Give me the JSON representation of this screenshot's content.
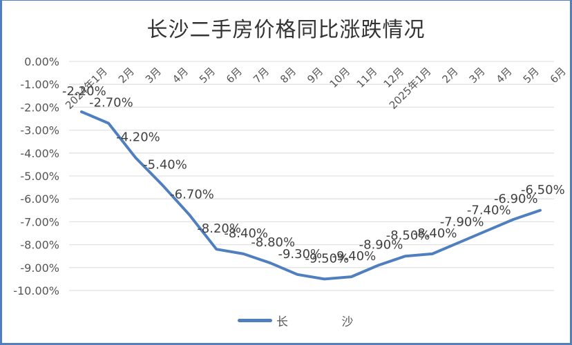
{
  "title": "长沙二手房价格同比涨跌情况",
  "legend": {
    "label": "长 沙",
    "color": "#4f7fbf"
  },
  "colors": {
    "line": "#4f7fbf",
    "border": "#4f7fbf",
    "grid": "#e2e2e2",
    "text": "#555555"
  },
  "chart_data": {
    "type": "line",
    "title": "长沙二手房价格同比涨跌情况",
    "xlabel": "",
    "ylabel": "",
    "categories": [
      "2024年1月",
      "2月",
      "3月",
      "4月",
      "5月",
      "6月",
      "7月",
      "8月",
      "9月",
      "10月",
      "11月",
      "12月",
      "2025年1月",
      "2月",
      "3月",
      "4月",
      "5月",
      "6月"
    ],
    "series": [
      {
        "name": "长 沙",
        "values": [
          -2.2,
          -2.7,
          -4.2,
          -5.4,
          -6.7,
          -8.2,
          -8.4,
          -8.8,
          -9.3,
          -9.5,
          -9.4,
          -8.9,
          -8.5,
          -8.4,
          -7.9,
          -7.4,
          -6.9,
          -6.5
        ],
        "labels": [
          "-2.20%",
          "-2.70%",
          "-4.20%",
          "-5.40%",
          "-6.70%",
          "-8.20%",
          "-8.40%",
          "-8.80%",
          "-9.30%",
          "-9.50%",
          "-9.40%",
          "-8.90%",
          "-8.50%",
          "-8.40%",
          "-7.90%",
          "-7.40%",
          "-6.90%",
          "-6.50%"
        ]
      }
    ],
    "y_ticks": [
      "0.00%",
      "-1.00%",
      "-2.00%",
      "-3.00%",
      "-4.00%",
      "-5.00%",
      "-6.00%",
      "-7.00%",
      "-8.00%",
      "-9.00%",
      "-10.00%"
    ],
    "ylim": [
      -10,
      0
    ],
    "grid": true,
    "legend_position": "bottom"
  }
}
